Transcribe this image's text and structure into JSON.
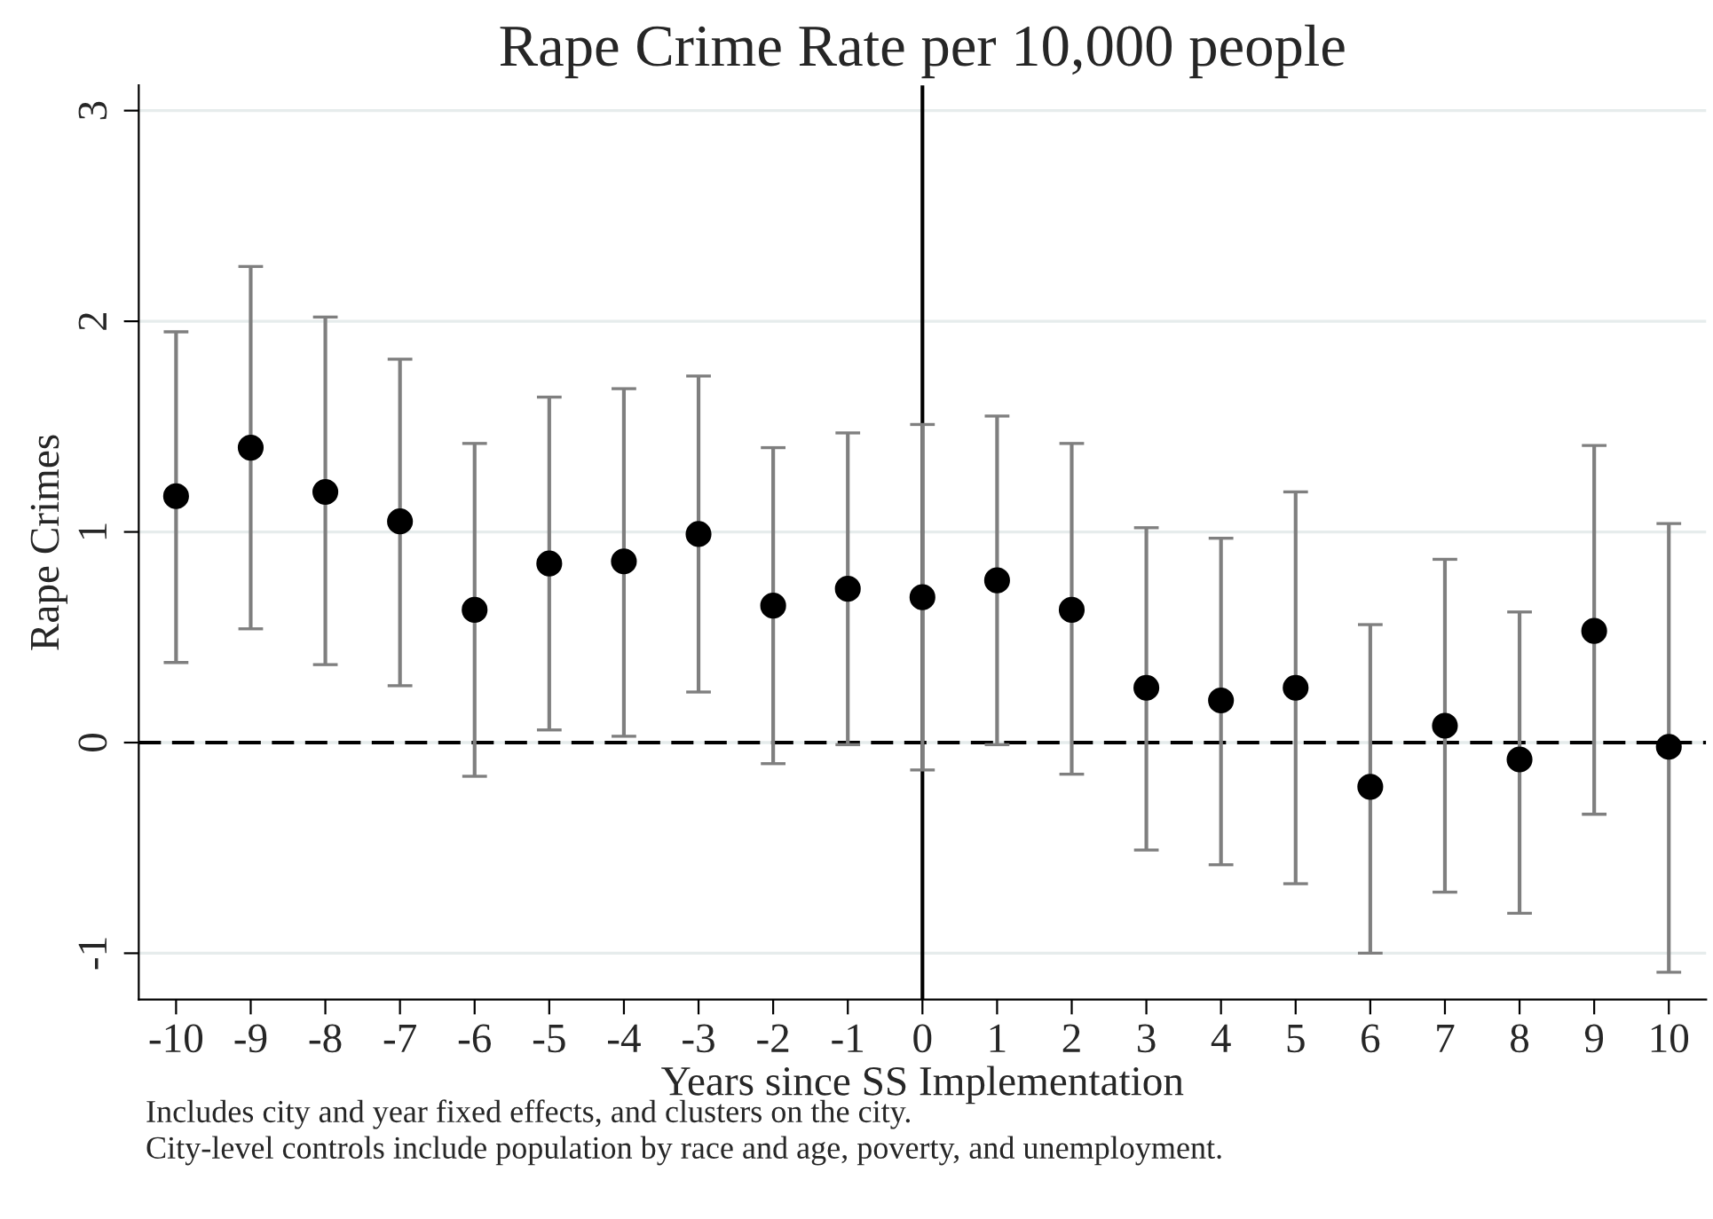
{
  "chart_data": {
    "type": "scatter",
    "title": "Rape Crime Rate per 10,000 people",
    "xlabel": "Years since SS Implementation",
    "ylabel": "Rape Crimes",
    "x": [
      -10,
      -9,
      -8,
      -7,
      -6,
      -5,
      -4,
      -3,
      -2,
      -1,
      0,
      1,
      2,
      3,
      4,
      5,
      6,
      7,
      8,
      9,
      10
    ],
    "series": [
      {
        "color": "#000000",
        "values": [
          1.17,
          1.4,
          1.19,
          1.05,
          0.63,
          0.85,
          0.86,
          0.99,
          0.65,
          0.73,
          0.69,
          0.77,
          0.63,
          0.26,
          0.2,
          0.26,
          -0.21,
          0.08,
          -0.08,
          0.53,
          -0.02
        ],
        "errors": [
          [
            0.38,
            1.95
          ],
          [
            0.54,
            2.26
          ],
          [
            0.37,
            2.02
          ],
          [
            0.27,
            1.82
          ],
          [
            -0.16,
            1.42
          ],
          [
            0.06,
            1.64
          ],
          [
            0.03,
            1.68
          ],
          [
            0.24,
            1.74
          ],
          [
            -0.1,
            1.4
          ],
          [
            -0.01,
            1.47
          ],
          [
            -0.13,
            1.51
          ],
          [
            -0.01,
            1.55
          ],
          [
            -0.15,
            1.42
          ],
          [
            -0.51,
            1.02
          ],
          [
            -0.58,
            0.97
          ],
          [
            -0.67,
            1.19
          ],
          [
            -1.0,
            0.56
          ],
          [
            -0.71,
            0.87
          ],
          [
            -0.81,
            0.62
          ],
          [
            -0.34,
            1.41
          ],
          [
            -1.09,
            1.04
          ]
        ]
      }
    ],
    "xlim": [
      -10.5,
      10.5
    ],
    "xticks": [
      -10,
      -9,
      -8,
      -7,
      -6,
      -5,
      -4,
      -3,
      -2,
      -1,
      0,
      1,
      2,
      3,
      4,
      5,
      6,
      7,
      8,
      9,
      10
    ],
    "ylim": [
      -1.22,
      3.12
    ],
    "yticks": [
      -1,
      0,
      1,
      2,
      3
    ],
    "ref_lines": [
      {
        "axis": "y",
        "value": 0,
        "line_style": "dashed",
        "color": "#000000"
      },
      {
        "axis": "x",
        "value": 0,
        "line_style": "solid",
        "color": "#000000"
      }
    ],
    "grid": "y",
    "marker": "circle",
    "annotations": [
      "Includes city and year fixed effects, and clusters on the city.",
      "City-level controls include population by race and age, poverty, and unemployment."
    ]
  }
}
